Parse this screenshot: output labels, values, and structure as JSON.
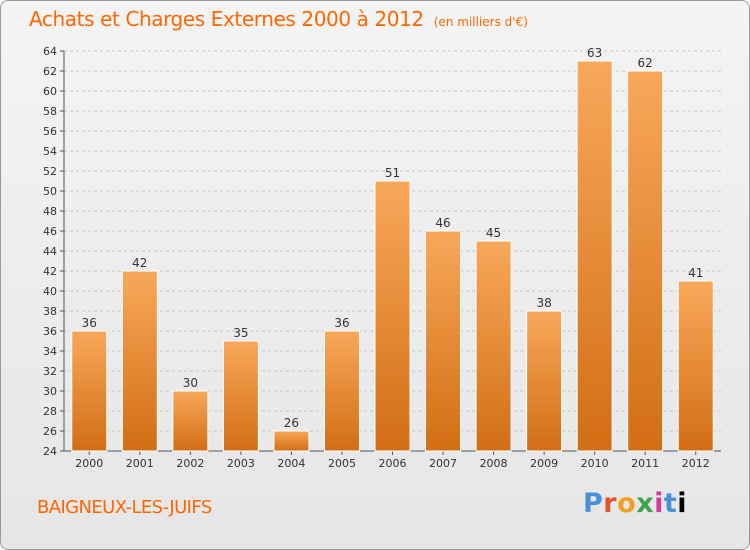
{
  "title": "Achats et Charges Externes 2000 à 2012",
  "unit": "(en milliers d'€)",
  "town": "BAIGNEUX-LES-JUIFS",
  "logo": [
    "P",
    "r",
    "o",
    "x",
    "i",
    "t",
    "i"
  ],
  "colors": {
    "bar_top": "#f8a85a",
    "bar_bottom": "#d26e14",
    "title": "#ff6600",
    "grid": "#c8c8c8"
  },
  "chart_data": {
    "type": "bar",
    "title": "Achats et Charges Externes 2000 à 2012",
    "subtitle": "(en milliers d'€)",
    "categories": [
      "2000",
      "2001",
      "2002",
      "2003",
      "2004",
      "2005",
      "2006",
      "2007",
      "2008",
      "2009",
      "2010",
      "2011",
      "2012"
    ],
    "values": [
      36,
      42,
      30,
      35,
      26,
      36,
      51,
      46,
      45,
      38,
      63,
      62,
      41
    ],
    "ylim": [
      24,
      64
    ],
    "yticks": [
      24,
      26,
      28,
      30,
      32,
      34,
      36,
      38,
      40,
      42,
      44,
      46,
      48,
      50,
      52,
      54,
      56,
      58,
      60,
      62,
      64
    ],
    "grid": "horizontal dashed",
    "xlabel": "",
    "ylabel": ""
  }
}
